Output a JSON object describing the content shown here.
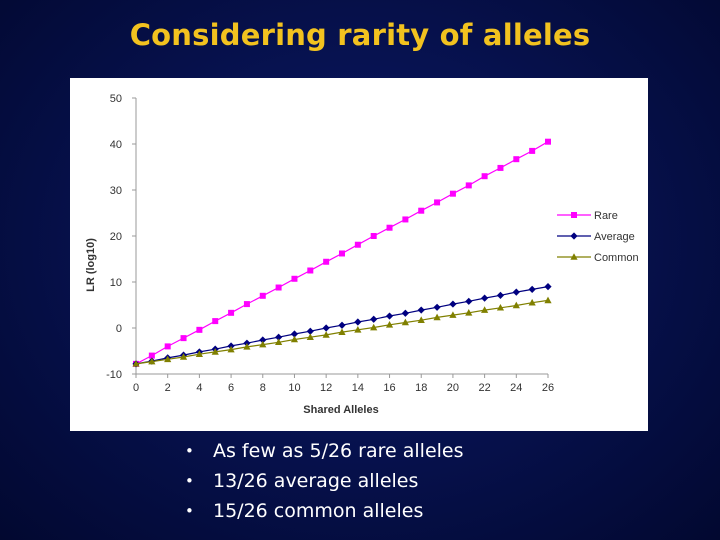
{
  "slide": {
    "title": "Considering rarity of alleles",
    "bullets": [
      "As few as 5/26 rare alleles",
      "13/26 average alleles",
      "15/26 common alleles"
    ],
    "bullet_glyph": "•"
  },
  "colors": {
    "title": "#f2c21f",
    "background": "#06104a",
    "rare": "#ff00ff",
    "average": "#000080",
    "common": "#808000"
  },
  "chart_data": {
    "type": "line",
    "xlabel": "Shared Alleles",
    "ylabel": "LR (log10)",
    "xlim": [
      0,
      26
    ],
    "ylim": [
      -10,
      50
    ],
    "xticks": [
      0,
      2,
      4,
      6,
      8,
      10,
      12,
      14,
      16,
      18,
      20,
      22,
      24,
      26
    ],
    "yticks": [
      -10,
      0,
      10,
      20,
      30,
      40,
      50
    ],
    "grid": false,
    "legend": "right",
    "x": [
      0,
      1,
      2,
      3,
      4,
      5,
      6,
      7,
      8,
      9,
      10,
      11,
      12,
      13,
      14,
      15,
      16,
      17,
      18,
      19,
      20,
      21,
      22,
      23,
      24,
      25,
      26
    ],
    "series": [
      {
        "name": "Rare",
        "marker": "square",
        "color": "#ff00ff",
        "values": [
          -7.8,
          -6.0,
          -4.0,
          -2.2,
          -0.4,
          1.5,
          3.3,
          5.2,
          7.0,
          8.8,
          10.7,
          12.5,
          14.4,
          16.2,
          18.1,
          20.0,
          21.8,
          23.6,
          25.5,
          27.3,
          29.2,
          31.0,
          33.0,
          34.8,
          36.7,
          38.5,
          40.5
        ]
      },
      {
        "name": "Average",
        "marker": "diamond",
        "color": "#000080",
        "values": [
          -7.8,
          -7.2,
          -6.5,
          -5.9,
          -5.2,
          -4.6,
          -3.9,
          -3.3,
          -2.6,
          -2.0,
          -1.3,
          -0.7,
          0.0,
          0.6,
          1.3,
          1.9,
          2.6,
          3.2,
          3.9,
          4.5,
          5.2,
          5.8,
          6.5,
          7.1,
          7.8,
          8.4,
          9.0
        ]
      },
      {
        "name": "Common",
        "marker": "triangle",
        "color": "#808000",
        "values": [
          -7.8,
          -7.3,
          -6.8,
          -6.3,
          -5.7,
          -5.2,
          -4.7,
          -4.1,
          -3.6,
          -3.1,
          -2.5,
          -2.0,
          -1.5,
          -0.9,
          -0.4,
          0.1,
          0.7,
          1.2,
          1.7,
          2.3,
          2.8,
          3.3,
          3.9,
          4.4,
          4.9,
          5.5,
          6.0
        ]
      }
    ]
  }
}
